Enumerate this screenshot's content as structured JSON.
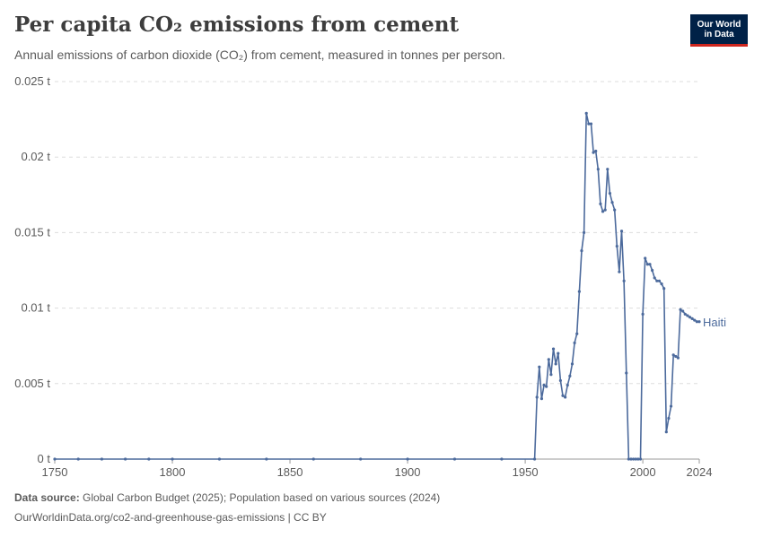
{
  "header": {
    "title": "Per capita CO₂ emissions from cement",
    "subtitle": "Annual emissions of carbon dioxide (CO₂) from cement, measured in tonnes per person."
  },
  "logo": {
    "line1": "Our World",
    "line2": "in Data"
  },
  "footer": {
    "source_label": "Data source:",
    "source_text": "Global Carbon Budget (2025); Population based on various sources (2024)",
    "url": "OurWorldinData.org/co2-and-greenhouse-gas-emissions | CC BY"
  },
  "colors": {
    "line": "#4c6a9c",
    "grid": "#dddddd",
    "text": "#5b5b5b",
    "logo_bg": "#002147",
    "logo_accent": "#ce261e"
  },
  "chart_data": {
    "type": "line",
    "xlabel": "",
    "ylabel": "",
    "xlim": [
      1750,
      2024
    ],
    "ylim": [
      0,
      0.025
    ],
    "x_ticks": [
      1750,
      1800,
      1850,
      1900,
      1950,
      2000,
      2024
    ],
    "y_ticks": [
      {
        "value": 0,
        "label": "0 t"
      },
      {
        "value": 0.005,
        "label": "0.005 t"
      },
      {
        "value": 0.01,
        "label": "0.01 t"
      },
      {
        "value": 0.015,
        "label": "0.015 t"
      },
      {
        "value": 0.02,
        "label": "0.02 t"
      },
      {
        "value": 0.025,
        "label": "0.025 t"
      }
    ],
    "grid": true,
    "series": [
      {
        "name": "Haiti",
        "x": [
          1750,
          1760,
          1770,
          1780,
          1790,
          1800,
          1820,
          1840,
          1860,
          1880,
          1900,
          1920,
          1940,
          1954,
          1955,
          1956,
          1957,
          1958,
          1959,
          1960,
          1961,
          1962,
          1963,
          1964,
          1965,
          1966,
          1967,
          1968,
          1969,
          1970,
          1971,
          1972,
          1973,
          1974,
          1975,
          1976,
          1977,
          1978,
          1979,
          1980,
          1981,
          1982,
          1983,
          1984,
          1985,
          1986,
          1987,
          1988,
          1989,
          1990,
          1991,
          1992,
          1993,
          1994,
          1995,
          1996,
          1997,
          1998,
          1999,
          2000,
          2001,
          2002,
          2003,
          2004,
          2005,
          2006,
          2007,
          2008,
          2009,
          2010,
          2011,
          2012,
          2013,
          2014,
          2015,
          2016,
          2017,
          2018,
          2019,
          2020,
          2021,
          2022,
          2023,
          2024
        ],
        "values": [
          0,
          0,
          0,
          0,
          0,
          0,
          0,
          0,
          0,
          0,
          0,
          0,
          0,
          0,
          0.0041,
          0.0061,
          0.004,
          0.0049,
          0.0048,
          0.0066,
          0.0056,
          0.0073,
          0.0063,
          0.007,
          0.0052,
          0.0042,
          0.0041,
          0.0049,
          0.0055,
          0.0063,
          0.0077,
          0.0083,
          0.0111,
          0.0138,
          0.015,
          0.0229,
          0.0222,
          0.0222,
          0.0203,
          0.0204,
          0.0192,
          0.0169,
          0.0164,
          0.0165,
          0.0192,
          0.0176,
          0.017,
          0.0165,
          0.0141,
          0.0124,
          0.0151,
          0.0118,
          0.0057,
          0,
          0,
          0,
          0,
          0,
          0,
          0.0096,
          0.0133,
          0.0129,
          0.0129,
          0.0125,
          0.012,
          0.0118,
          0.0118,
          0.0116,
          0.0113,
          0.0018,
          0.0027,
          0.0035,
          0.0069,
          0.0068,
          0.0067,
          0.0099,
          0.0098,
          0.0096,
          0.0095,
          0.0094,
          0.0093,
          0.0092,
          0.0091,
          0.0091
        ]
      }
    ]
  }
}
